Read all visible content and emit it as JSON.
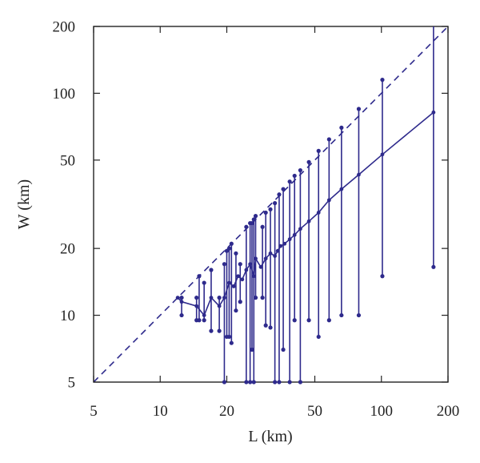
{
  "chart_data": {
    "type": "line",
    "title": "",
    "xlabel": "L (km)",
    "ylabel": "W (km)",
    "xscale": "log",
    "yscale": "log",
    "xlim": [
      5,
      200
    ],
    "ylim": [
      5,
      200
    ],
    "xticks": [
      5,
      10,
      20,
      50,
      100,
      200
    ],
    "yticks": [
      5,
      10,
      20,
      50,
      100,
      200
    ],
    "xtick_labels": [
      "5",
      "10",
      "20",
      "50",
      "100",
      "200"
    ],
    "ytick_labels": [
      "5",
      "10",
      "20",
      "50",
      "100",
      "200"
    ],
    "grid": false,
    "legend": "none",
    "color": "#2e2a8c",
    "reference_line": {
      "style": "dashed",
      "x": [
        5,
        200
      ],
      "y": [
        5,
        200
      ]
    },
    "ranges": [
      {
        "L": 12.5,
        "Wmax": 12.0,
        "Wmin": 10.0
      },
      {
        "L": 14.6,
        "Wmax": 12.0,
        "Wmin": 9.5
      },
      {
        "L": 15.0,
        "Wmax": 15.0,
        "Wmin": 9.5
      },
      {
        "L": 15.8,
        "Wmax": 14.0,
        "Wmin": 9.5
      },
      {
        "L": 17.0,
        "Wmax": 16.0,
        "Wmin": 8.5
      },
      {
        "L": 18.5,
        "Wmax": 12.0,
        "Wmin": 8.5
      },
      {
        "L": 19.5,
        "Wmax": 17.0,
        "Wmin": 5.0
      },
      {
        "L": 20.0,
        "Wmax": 19.5,
        "Wmin": 8.0
      },
      {
        "L": 20.5,
        "Wmax": 20.0,
        "Wmin": 8.0
      },
      {
        "L": 21.0,
        "Wmax": 21.0,
        "Wmin": 7.5
      },
      {
        "L": 22.0,
        "Wmax": 19.0,
        "Wmin": 10.5
      },
      {
        "L": 23.0,
        "Wmax": 17.0,
        "Wmin": 11.5
      },
      {
        "L": 24.5,
        "Wmax": 25.0,
        "Wmin": 5.0
      },
      {
        "L": 25.5,
        "Wmax": 26.0,
        "Wmin": 5.0
      },
      {
        "L": 26.0,
        "Wmax": 26.0,
        "Wmin": 7.0
      },
      {
        "L": 26.5,
        "Wmax": 27.0,
        "Wmin": 5.0
      },
      {
        "L": 27.0,
        "Wmax": 28.0,
        "Wmin": 12.0
      },
      {
        "L": 29.0,
        "Wmax": 25.0,
        "Wmin": 12.0
      },
      {
        "L": 30.0,
        "Wmax": 29.0,
        "Wmin": 9.0
      },
      {
        "L": 31.5,
        "Wmax": 30.0,
        "Wmin": 8.8
      },
      {
        "L": 33.0,
        "Wmax": 32.0,
        "Wmin": 5.0
      },
      {
        "L": 34.5,
        "Wmax": 35.0,
        "Wmin": 5.0
      },
      {
        "L": 36.0,
        "Wmax": 37.0,
        "Wmin": 7.0
      },
      {
        "L": 38.5,
        "Wmax": 40.0,
        "Wmin": 5.0
      },
      {
        "L": 40.5,
        "Wmax": 42.5,
        "Wmin": 9.5
      },
      {
        "L": 43.0,
        "Wmax": 45.0,
        "Wmin": 5.0
      },
      {
        "L": 47.0,
        "Wmax": 49.0,
        "Wmin": 9.5
      },
      {
        "L": 52.0,
        "Wmax": 55.0,
        "Wmin": 8.0
      },
      {
        "L": 58.0,
        "Wmax": 62.0,
        "Wmin": 9.5
      },
      {
        "L": 66.0,
        "Wmax": 70.0,
        "Wmin": 10.0
      },
      {
        "L": 79.0,
        "Wmax": 85.0,
        "Wmin": 10.0
      },
      {
        "L": 101.0,
        "Wmax": 115.0,
        "Wmin": 15.0
      },
      {
        "L": 172.0,
        "Wmax": 200.0,
        "Wmin": 16.5
      }
    ],
    "mean_line": {
      "x": [
        12.0,
        12.5,
        14.6,
        15.8,
        17.0,
        18.5,
        19.5,
        20.5,
        21.5,
        22.5,
        23.5,
        24.5,
        25.5,
        26.5,
        27.0,
        28.5,
        30.0,
        31.5,
        33.0,
        34.0,
        35.0,
        36.5,
        38.5,
        40.5,
        43.0,
        47.0,
        52.0,
        58.0,
        66.0,
        79.0,
        101.0,
        172.0
      ],
      "y": [
        12.0,
        11.5,
        11.0,
        10.0,
        12.0,
        11.0,
        12.0,
        14.0,
        13.5,
        15.0,
        14.5,
        16.0,
        17.0,
        15.0,
        18.0,
        16.5,
        18.0,
        19.0,
        18.5,
        19.5,
        20.5,
        21.0,
        22.0,
        23.0,
        24.5,
        26.5,
        29.0,
        33.0,
        37.0,
        43.0,
        53.0,
        82.0
      ]
    }
  }
}
